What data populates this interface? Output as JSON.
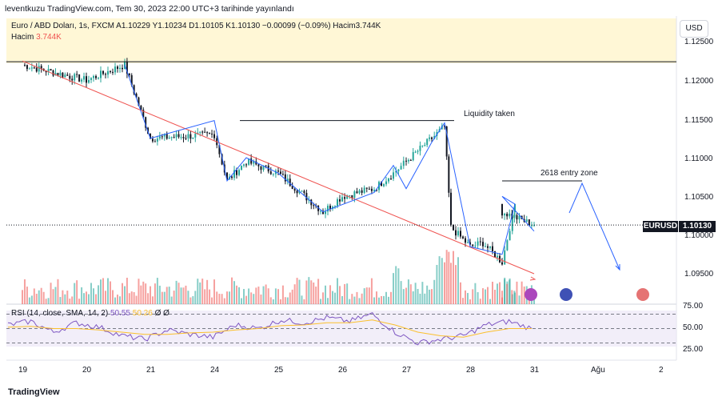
{
  "header": {
    "published": "leventkuzu TradingView.com, Tem 30, 2023 22:00 UTC+3 tarihinde yayınlandı"
  },
  "legend": {
    "line1": "Euro / ABD Doları, 1s, FXCM  A1.10229  Y1.10234  D1.10105  K1.10130  −0.00099 (−0.09%)  Hacim3.744K",
    "volume_label": "Hacim",
    "volume_value": "3.744K"
  },
  "currency_button": "USD",
  "last_price": {
    "symbol": "EURUSD",
    "value": "1.10130"
  },
  "annotations": {
    "liquidity": "Liquidity taken",
    "entry": "2618 entry zone"
  },
  "rsi": {
    "label": "RSI (14, close, SMA, 14, 2)",
    "value": "50.55",
    "sma": "50.26",
    "extra": "Ø  Ø"
  },
  "branding": "TradingView",
  "colors": {
    "up": "#26a69a",
    "down": "#131722",
    "vol_up": "#26a69a",
    "vol_down": "#ef5350",
    "trend": "#ef5350",
    "zigzag": "#2962ff",
    "rsi": "#7e57c2",
    "rsi_sma": "#fbc02d"
  },
  "chart_data": [
    {
      "type": "candlestick",
      "title": "Euro / ABD Doları, 1s, FXCM",
      "y_ticks": [
        "1.12500",
        "1.12000",
        "1.11500",
        "1.11000",
        "1.10500",
        "1.10000",
        "1.09500"
      ],
      "x_ticks": [
        "19",
        "20",
        "21",
        "24",
        "25",
        "26",
        "27",
        "28",
        "31",
        "Ağu",
        "2"
      ],
      "ylim": [
        1.0925,
        1.1265
      ],
      "anchors": [
        {
          "date": "19",
          "price": 1.122
        },
        {
          "date": "20",
          "price": 1.12
        },
        {
          "date": "20.6",
          "price": 1.122
        },
        {
          "date": "21",
          "price": 1.1125
        },
        {
          "date": "24",
          "price": 1.113
        },
        {
          "date": "24.2",
          "price": 1.107
        },
        {
          "date": "24.5",
          "price": 1.1095
        },
        {
          "date": "25",
          "price": 1.108
        },
        {
          "date": "25.7",
          "price": 1.103
        },
        {
          "date": "26",
          "price": 1.105
        },
        {
          "date": "26.5",
          "price": 1.106
        },
        {
          "date": "26.8",
          "price": 1.108
        },
        {
          "date": "27",
          "price": 1.1095
        },
        {
          "date": "27.4",
          "price": 1.1125
        },
        {
          "date": "27.6",
          "price": 1.114
        },
        {
          "date": "27.7",
          "price": 1.101
        },
        {
          "date": "28",
          "price": 1.0985
        },
        {
          "date": "28.2",
          "price": 1.099
        },
        {
          "date": "28.5",
          "price": 1.0965
        },
        {
          "date": "28.7",
          "price": 1.104
        },
        {
          "date": "29",
          "price": 1.103
        },
        {
          "date": "31",
          "price": 1.1013
        }
      ],
      "hlines": [
        {
          "price": 1.1224,
          "label": ""
        },
        {
          "price": 1.1148,
          "label": "Liquidity taken"
        },
        {
          "price": 1.107,
          "label": "2618 entry zone"
        }
      ],
      "last": 1.1013
    },
    {
      "type": "line",
      "title": "RSI (14, close, SMA, 14, 2)",
      "y_ticks": [
        "75.00",
        "50.00",
        "25.00"
      ],
      "levels": [
        70,
        50,
        30
      ],
      "series": [
        {
          "name": "RSI",
          "values": [
            55,
            60,
            45,
            58,
            52,
            40,
            35,
            48,
            42,
            38,
            55,
            50,
            62,
            58,
            65,
            60,
            70,
            45,
            30,
            35,
            40,
            55,
            60,
            50
          ]
        },
        {
          "name": "SMA",
          "values": [
            52,
            53,
            50,
            50,
            48,
            45,
            42,
            42,
            44,
            45,
            48,
            50,
            54,
            55,
            58,
            58,
            62,
            55,
            45,
            40,
            38,
            45,
            50,
            50
          ]
        }
      ]
    }
  ]
}
